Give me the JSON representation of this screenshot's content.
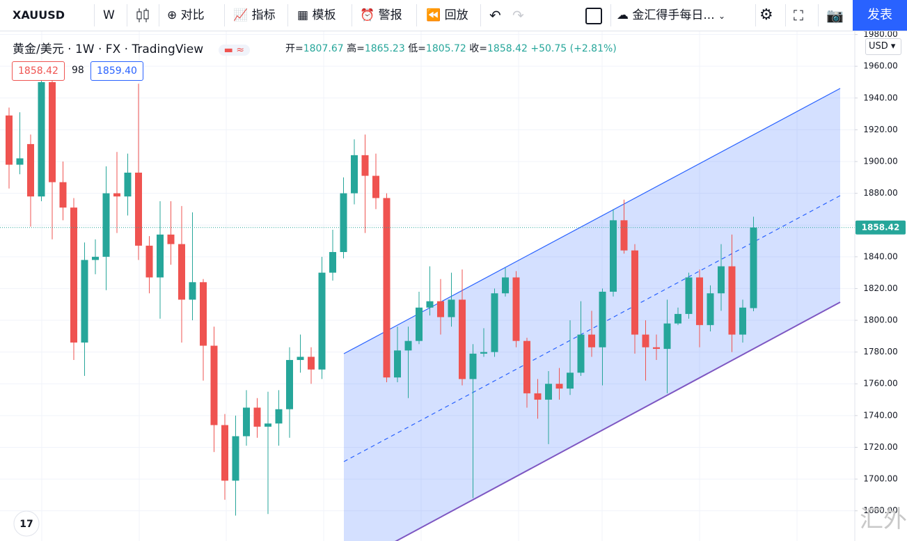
{
  "toolbar": {
    "symbol": "XAUUSD",
    "interval": "W",
    "items": [
      "对比",
      "指标",
      "模板",
      "警报",
      "回放"
    ],
    "layout_name": "金汇得手每日...",
    "publish": "发表"
  },
  "legend": {
    "title": "黄金/美元",
    "interval": "1W",
    "exchange": "FX",
    "source": "TradingView",
    "ohlc_labels": [
      "开=",
      "高=",
      "低=",
      "收="
    ],
    "change": "+50.75 (+2.81%)"
  },
  "trade_panel": {
    "sell": "1858.42",
    "spread": "98",
    "buy": "1859.40"
  },
  "currency": "USD",
  "watermark": "汇外网",
  "chart_data": {
    "type": "candlestick",
    "up_color": "#26a69a",
    "down_color": "#ef5350",
    "grid": true,
    "ylim": [
      1661,
      1982
    ],
    "yticks": [
      {
        "value": 1680,
        "label": "1680.00"
      },
      {
        "value": 1700,
        "label": "1700.00"
      },
      {
        "value": 1720,
        "label": "1720.00"
      },
      {
        "value": 1740,
        "label": "1740.00"
      },
      {
        "value": 1760,
        "label": "1760.00"
      },
      {
        "value": 1780,
        "label": "1780.00"
      },
      {
        "value": 1800,
        "label": "1800.00"
      },
      {
        "value": 1820,
        "label": "1820.00"
      },
      {
        "value": 1840,
        "label": "1840.00"
      },
      {
        "value": 1860,
        "label": "1860.00"
      },
      {
        "value": 1880,
        "label": "1880.00"
      },
      {
        "value": 1900,
        "label": "1900.00"
      },
      {
        "value": 1920,
        "label": "1920.00"
      },
      {
        "value": 1940,
        "label": "1940.00"
      },
      {
        "value": 1960,
        "label": "1960.00"
      },
      {
        "value": 1980,
        "label": "1980.00"
      }
    ],
    "open": [
      1929,
      1898,
      1911,
      1878,
      1950,
      1887,
      1871,
      1786,
      1838,
      1840,
      1880,
      1878,
      1893,
      1847,
      1827,
      1854,
      1848,
      1813,
      1824,
      1784,
      1734,
      1699,
      1727,
      1745,
      1733,
      1735,
      1744,
      1775,
      1777,
      1769,
      1830,
      1843,
      1880,
      1904,
      1891,
      1877,
      1764,
      1781,
      1787,
      1808,
      1812,
      1802,
      1813,
      1763,
      1779,
      1780,
      1817,
      1827,
      1787,
      1754,
      1750,
      1760,
      1757,
      1767,
      1791,
      1783,
      1818,
      1863,
      1844,
      1791,
      1783,
      1782,
      1798,
      1804,
      1827,
      1797,
      1817,
      1834,
      1791,
      1807.67
    ],
    "high": [
      1934,
      1931,
      1917,
      1954,
      1954,
      1900,
      1877,
      1849,
      1851,
      1897,
      1906,
      1905,
      1949,
      1853,
      1875,
      1875,
      1872,
      1868,
      1826,
      1796,
      1741,
      1740,
      1756,
      1751,
      1755,
      1756,
      1783,
      1791,
      1783,
      1840,
      1857,
      1890,
      1914,
      1917,
      1905,
      1880,
      1796,
      1796,
      1818,
      1834,
      1826,
      1830,
      1832,
      1785,
      1795,
      1820,
      1833,
      1831,
      1789,
      1763,
      1768,
      1770,
      1800,
      1812,
      1806,
      1820,
      1870,
      1876,
      1848,
      1800,
      1791,
      1813,
      1808,
      1830,
      1832,
      1822,
      1848,
      1854,
      1813,
      1865.23
    ],
    "low": [
      1883,
      1892,
      1859,
      1875,
      1851,
      1863,
      1775,
      1765,
      1829,
      1819,
      1855,
      1866,
      1838,
      1817,
      1801,
      1835,
      1786,
      1800,
      1762,
      1717,
      1687,
      1677,
      1721,
      1726,
      1678,
      1721,
      1726,
      1767,
      1760,
      1763,
      1825,
      1839,
      1873,
      1855,
      1870,
      1761,
      1761,
      1751,
      1785,
      1803,
      1791,
      1796,
      1759,
      1688,
      1777,
      1777,
      1815,
      1783,
      1745,
      1738,
      1722,
      1750,
      1753,
      1765,
      1777,
      1759,
      1815,
      1842,
      1779,
      1762,
      1775,
      1754,
      1797,
      1801,
      1783,
      1793,
      1806,
      1780,
      1786,
      1805.72
    ],
    "close": [
      1898,
      1902,
      1878,
      1950,
      1887,
      1871,
      1786,
      1838,
      1840,
      1880,
      1878,
      1893,
      1847,
      1827,
      1854,
      1848,
      1813,
      1824,
      1784,
      1734,
      1699,
      1727,
      1745,
      1733,
      1735,
      1744,
      1775,
      1777,
      1769,
      1830,
      1843,
      1880,
      1904,
      1891,
      1877,
      1764,
      1781,
      1787,
      1808,
      1812,
      1802,
      1813,
      1763,
      1779,
      1780,
      1817,
      1827,
      1787,
      1754,
      1750,
      1760,
      1757,
      1767,
      1791,
      1783,
      1818,
      1863,
      1844,
      1791,
      1783,
      1782,
      1798,
      1804,
      1827,
      1797,
      1817,
      1834,
      1791,
      1808,
      1858.42
    ]
  }
}
